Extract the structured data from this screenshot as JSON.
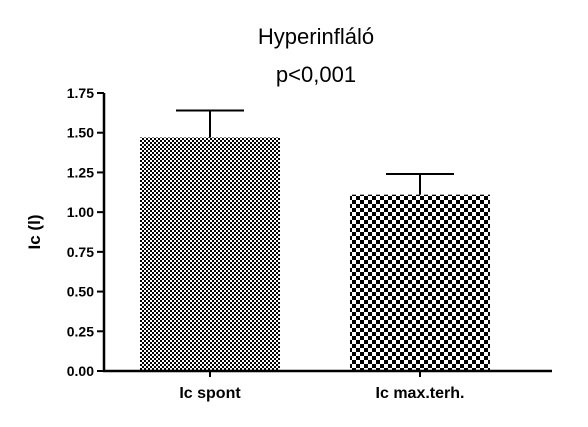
{
  "chart_data": {
    "type": "bar",
    "title": "Hyperinfláló",
    "subtitle": "p<0,001",
    "ylabel": "Ic (l)",
    "xlabel": "",
    "categories": [
      "Ic spont",
      "Ic max.terh."
    ],
    "values": [
      1.47,
      1.11
    ],
    "errors": [
      0.17,
      0.13
    ],
    "ylim": [
      0,
      1.75
    ],
    "yticks": [
      "0.00",
      "0.25",
      "0.50",
      "0.75",
      "1.00",
      "1.25",
      "1.50",
      "1.75"
    ],
    "grid": false,
    "legend": "none",
    "bar_patterns": [
      "fine-checker",
      "coarse-checker"
    ],
    "colors": {
      "ink": "#000000",
      "background": "#ffffff"
    }
  }
}
